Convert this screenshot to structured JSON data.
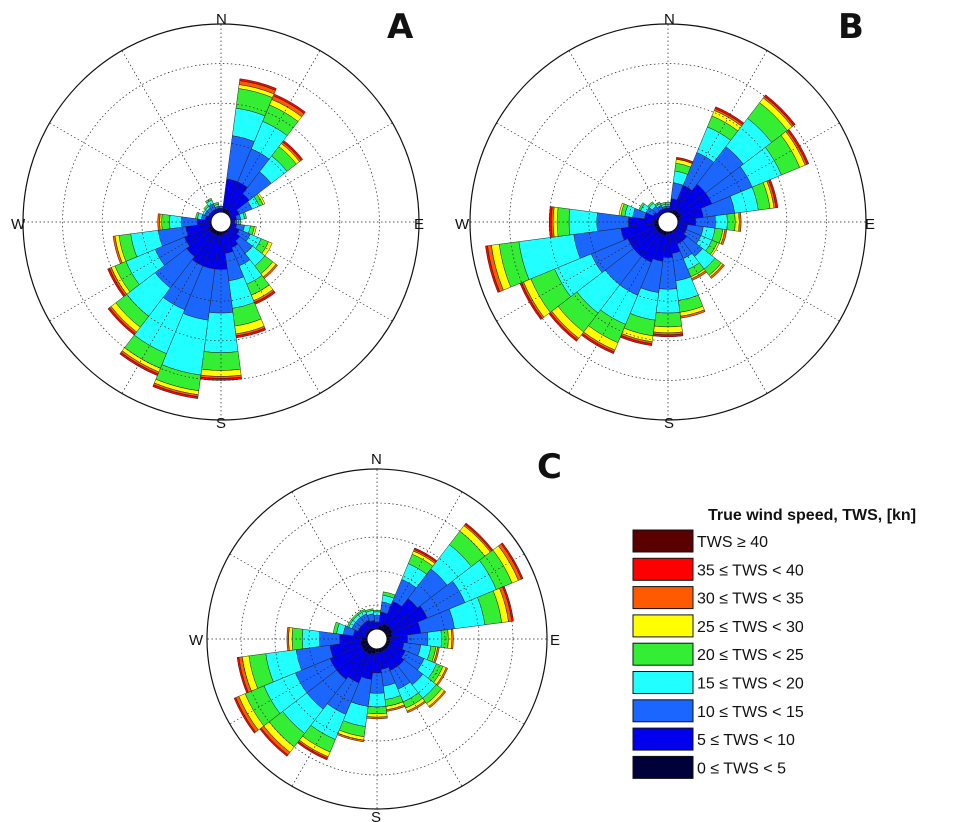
{
  "chart_data": [
    {
      "type": "wind rose",
      "panel": "A",
      "directions": [
        "N",
        "E",
        "S",
        "W"
      ],
      "sector_width_deg": 15,
      "rmax": 1.0,
      "sectors": [
        {
          "dir": 0,
          "r": [
            0.05,
            0.07,
            0.08,
            0.08,
            0.08,
            0.08,
            0.08,
            0.08,
            0.08
          ]
        },
        {
          "dir": 15,
          "r": [
            0.07,
            0.22,
            0.44,
            0.58,
            0.68,
            0.7,
            0.72,
            0.73,
            0.73
          ]
        },
        {
          "dir": 30,
          "r": [
            0.07,
            0.22,
            0.4,
            0.55,
            0.64,
            0.67,
            0.69,
            0.7,
            0.7
          ]
        },
        {
          "dir": 45,
          "r": [
            0.06,
            0.18,
            0.32,
            0.42,
            0.48,
            0.5,
            0.51,
            0.52,
            0.52
          ]
        },
        {
          "dir": 60,
          "r": [
            0.05,
            0.1,
            0.17,
            0.21,
            0.23,
            0.24,
            0.24,
            0.24,
            0.24
          ]
        },
        {
          "dir": 75,
          "r": [
            0.05,
            0.08,
            0.1,
            0.12,
            0.13,
            0.13,
            0.13,
            0.13,
            0.13
          ]
        },
        {
          "dir": 90,
          "r": [
            0.05,
            0.07,
            0.08,
            0.09,
            0.1,
            0.1,
            0.1,
            0.1,
            0.1
          ]
        },
        {
          "dir": 105,
          "r": [
            0.05,
            0.08,
            0.12,
            0.15,
            0.17,
            0.18,
            0.18,
            0.18,
            0.18
          ]
        },
        {
          "dir": 120,
          "r": [
            0.05,
            0.1,
            0.16,
            0.22,
            0.26,
            0.28,
            0.28,
            0.28,
            0.28
          ]
        },
        {
          "dir": 135,
          "r": [
            0.05,
            0.12,
            0.2,
            0.28,
            0.33,
            0.35,
            0.36,
            0.36,
            0.36
          ]
        },
        {
          "dir": 150,
          "r": [
            0.06,
            0.14,
            0.24,
            0.34,
            0.4,
            0.43,
            0.44,
            0.45,
            0.45
          ]
        },
        {
          "dir": 165,
          "r": [
            0.06,
            0.16,
            0.3,
            0.44,
            0.53,
            0.57,
            0.58,
            0.59,
            0.59
          ]
        },
        {
          "dir": 180,
          "r": [
            0.07,
            0.24,
            0.46,
            0.66,
            0.75,
            0.78,
            0.79,
            0.8,
            0.8
          ]
        },
        {
          "dir": 195,
          "r": [
            0.07,
            0.24,
            0.5,
            0.78,
            0.86,
            0.88,
            0.89,
            0.9,
            0.9
          ]
        },
        {
          "dir": 210,
          "r": [
            0.07,
            0.24,
            0.48,
            0.72,
            0.8,
            0.82,
            0.83,
            0.84,
            0.84
          ]
        },
        {
          "dir": 225,
          "r": [
            0.07,
            0.22,
            0.42,
            0.6,
            0.67,
            0.7,
            0.71,
            0.72,
            0.72
          ]
        },
        {
          "dir": 240,
          "r": [
            0.07,
            0.2,
            0.36,
            0.52,
            0.58,
            0.6,
            0.61,
            0.62,
            0.62
          ]
        },
        {
          "dir": 255,
          "r": [
            0.06,
            0.18,
            0.32,
            0.46,
            0.52,
            0.54,
            0.55,
            0.55,
            0.55
          ]
        },
        {
          "dir": 270,
          "r": [
            0.06,
            0.12,
            0.2,
            0.26,
            0.3,
            0.31,
            0.32,
            0.32,
            0.32
          ]
        },
        {
          "dir": 285,
          "r": [
            0.05,
            0.08,
            0.1,
            0.12,
            0.13,
            0.13,
            0.13,
            0.13,
            0.13
          ]
        },
        {
          "dir": 300,
          "r": [
            0.05,
            0.07,
            0.09,
            0.1,
            0.1,
            0.1,
            0.1,
            0.1,
            0.1
          ]
        },
        {
          "dir": 315,
          "r": [
            0.05,
            0.07,
            0.09,
            0.1,
            0.11,
            0.11,
            0.11,
            0.11,
            0.11
          ]
        },
        {
          "dir": 330,
          "r": [
            0.05,
            0.07,
            0.1,
            0.12,
            0.13,
            0.13,
            0.13,
            0.13,
            0.13
          ]
        },
        {
          "dir": 345,
          "r": [
            0.05,
            0.07,
            0.08,
            0.09,
            0.1,
            0.1,
            0.1,
            0.1,
            0.1
          ]
        }
      ]
    },
    {
      "type": "wind rose",
      "panel": "B",
      "directions": [
        "N",
        "E",
        "S",
        "W"
      ],
      "sector_width_deg": 15,
      "rmax": 1.0,
      "sectors": [
        {
          "dir": 0,
          "r": [
            0.05,
            0.07,
            0.08,
            0.09,
            0.1,
            0.1,
            0.1,
            0.1,
            0.1
          ]
        },
        {
          "dir": 15,
          "r": [
            0.06,
            0.12,
            0.2,
            0.26,
            0.3,
            0.32,
            0.32,
            0.33,
            0.33
          ]
        },
        {
          "dir": 30,
          "r": [
            0.07,
            0.2,
            0.38,
            0.52,
            0.58,
            0.61,
            0.62,
            0.63,
            0.63
          ]
        },
        {
          "dir": 45,
          "r": [
            0.07,
            0.24,
            0.48,
            0.66,
            0.76,
            0.79,
            0.8,
            0.81,
            0.81
          ]
        },
        {
          "dir": 60,
          "r": [
            0.07,
            0.24,
            0.46,
            0.62,
            0.72,
            0.75,
            0.76,
            0.77,
            0.77
          ]
        },
        {
          "dir": 75,
          "r": [
            0.06,
            0.18,
            0.34,
            0.46,
            0.52,
            0.54,
            0.55,
            0.56,
            0.56
          ]
        },
        {
          "dir": 90,
          "r": [
            0.05,
            0.14,
            0.24,
            0.3,
            0.34,
            0.36,
            0.37,
            0.37,
            0.37
          ]
        },
        {
          "dir": 105,
          "r": [
            0.05,
            0.1,
            0.18,
            0.24,
            0.28,
            0.29,
            0.3,
            0.3,
            0.3
          ]
        },
        {
          "dir": 120,
          "r": [
            0.05,
            0.1,
            0.18,
            0.24,
            0.27,
            0.28,
            0.28,
            0.28,
            0.28
          ]
        },
        {
          "dir": 135,
          "r": [
            0.05,
            0.12,
            0.22,
            0.3,
            0.34,
            0.35,
            0.36,
            0.36,
            0.36
          ]
        },
        {
          "dir": 150,
          "r": [
            0.05,
            0.12,
            0.2,
            0.26,
            0.3,
            0.31,
            0.32,
            0.32,
            0.32
          ]
        },
        {
          "dir": 165,
          "r": [
            0.06,
            0.16,
            0.3,
            0.4,
            0.46,
            0.48,
            0.49,
            0.49,
            0.49
          ]
        },
        {
          "dir": 180,
          "r": [
            0.06,
            0.18,
            0.34,
            0.46,
            0.53,
            0.56,
            0.57,
            0.58,
            0.58
          ]
        },
        {
          "dir": 195,
          "r": [
            0.07,
            0.2,
            0.36,
            0.5,
            0.58,
            0.61,
            0.62,
            0.63,
            0.63
          ]
        },
        {
          "dir": 210,
          "r": [
            0.07,
            0.22,
            0.4,
            0.56,
            0.66,
            0.7,
            0.71,
            0.72,
            0.72
          ]
        },
        {
          "dir": 225,
          "r": [
            0.07,
            0.22,
            0.4,
            0.58,
            0.7,
            0.74,
            0.75,
            0.76,
            0.76
          ]
        },
        {
          "dir": 240,
          "r": [
            0.07,
            0.22,
            0.42,
            0.62,
            0.75,
            0.79,
            0.8,
            0.81,
            0.81
          ]
        },
        {
          "dir": 255,
          "r": [
            0.07,
            0.24,
            0.48,
            0.76,
            0.86,
            0.9,
            0.92,
            0.93,
            0.93
          ]
        },
        {
          "dir": 270,
          "r": [
            0.07,
            0.2,
            0.36,
            0.5,
            0.56,
            0.58,
            0.59,
            0.6,
            0.6
          ]
        },
        {
          "dir": 285,
          "r": [
            0.06,
            0.12,
            0.18,
            0.22,
            0.24,
            0.25,
            0.25,
            0.25,
            0.25
          ]
        },
        {
          "dir": 300,
          "r": [
            0.05,
            0.08,
            0.12,
            0.15,
            0.16,
            0.16,
            0.16,
            0.16,
            0.16
          ]
        },
        {
          "dir": 315,
          "r": [
            0.05,
            0.07,
            0.1,
            0.12,
            0.13,
            0.13,
            0.13,
            0.13,
            0.13
          ]
        },
        {
          "dir": 330,
          "r": [
            0.05,
            0.07,
            0.09,
            0.1,
            0.11,
            0.11,
            0.11,
            0.11,
            0.11
          ]
        },
        {
          "dir": 345,
          "r": [
            0.05,
            0.07,
            0.08,
            0.09,
            0.1,
            0.1,
            0.1,
            0.1,
            0.1
          ]
        }
      ]
    },
    {
      "type": "wind rose",
      "panel": "C",
      "directions": [
        "N",
        "E",
        "S",
        "W"
      ],
      "sector_width_deg": 15,
      "rmax": 1.0,
      "sectors": [
        {
          "dir": 0,
          "r": [
            0.06,
            0.1,
            0.14,
            0.16,
            0.17,
            0.17,
            0.17,
            0.17,
            0.17
          ]
        },
        {
          "dir": 15,
          "r": [
            0.08,
            0.16,
            0.22,
            0.26,
            0.28,
            0.28,
            0.28,
            0.28,
            0.28
          ]
        },
        {
          "dir": 30,
          "r": [
            0.1,
            0.24,
            0.38,
            0.48,
            0.54,
            0.56,
            0.57,
            0.58,
            0.58
          ]
        },
        {
          "dir": 45,
          "r": [
            0.1,
            0.3,
            0.52,
            0.7,
            0.8,
            0.84,
            0.85,
            0.86,
            0.86
          ]
        },
        {
          "dir": 60,
          "r": [
            0.1,
            0.32,
            0.56,
            0.76,
            0.86,
            0.9,
            0.92,
            0.93,
            0.93
          ]
        },
        {
          "dir": 75,
          "r": [
            0.09,
            0.26,
            0.46,
            0.64,
            0.74,
            0.78,
            0.8,
            0.81,
            0.81
          ]
        },
        {
          "dir": 90,
          "r": [
            0.08,
            0.18,
            0.3,
            0.38,
            0.42,
            0.44,
            0.45,
            0.45,
            0.45
          ]
        },
        {
          "dir": 105,
          "r": [
            0.08,
            0.16,
            0.26,
            0.32,
            0.35,
            0.36,
            0.37,
            0.37,
            0.37
          ]
        },
        {
          "dir": 120,
          "r": [
            0.08,
            0.18,
            0.3,
            0.38,
            0.42,
            0.44,
            0.45,
            0.45,
            0.45
          ]
        },
        {
          "dir": 135,
          "r": [
            0.08,
            0.2,
            0.34,
            0.44,
            0.48,
            0.5,
            0.51,
            0.51,
            0.51
          ]
        },
        {
          "dir": 150,
          "r": [
            0.08,
            0.2,
            0.32,
            0.4,
            0.44,
            0.46,
            0.47,
            0.47,
            0.47
          ]
        },
        {
          "dir": 165,
          "r": [
            0.08,
            0.18,
            0.28,
            0.36,
            0.4,
            0.42,
            0.43,
            0.43,
            0.43
          ]
        },
        {
          "dir": 180,
          "r": [
            0.08,
            0.2,
            0.32,
            0.4,
            0.44,
            0.46,
            0.47,
            0.47,
            0.47
          ]
        },
        {
          "dir": 195,
          "r": [
            0.09,
            0.24,
            0.4,
            0.52,
            0.58,
            0.6,
            0.61,
            0.61,
            0.61
          ]
        },
        {
          "dir": 210,
          "r": [
            0.1,
            0.28,
            0.48,
            0.64,
            0.72,
            0.75,
            0.76,
            0.77,
            0.77
          ]
        },
        {
          "dir": 225,
          "r": [
            0.1,
            0.3,
            0.52,
            0.7,
            0.8,
            0.84,
            0.86,
            0.87,
            0.87
          ]
        },
        {
          "dir": 240,
          "r": [
            0.1,
            0.3,
            0.52,
            0.72,
            0.84,
            0.88,
            0.9,
            0.91,
            0.91
          ]
        },
        {
          "dir": 255,
          "r": [
            0.1,
            0.28,
            0.48,
            0.66,
            0.76,
            0.8,
            0.82,
            0.83,
            0.83
          ]
        },
        {
          "dir": 270,
          "r": [
            0.09,
            0.22,
            0.34,
            0.44,
            0.5,
            0.52,
            0.53,
            0.53,
            0.53
          ]
        },
        {
          "dir": 285,
          "r": [
            0.07,
            0.14,
            0.2,
            0.24,
            0.26,
            0.26,
            0.26,
            0.26,
            0.26
          ]
        },
        {
          "dir": 300,
          "r": [
            0.07,
            0.12,
            0.16,
            0.18,
            0.19,
            0.19,
            0.19,
            0.19,
            0.19
          ]
        },
        {
          "dir": 315,
          "r": [
            0.07,
            0.12,
            0.16,
            0.18,
            0.19,
            0.19,
            0.19,
            0.19,
            0.19
          ]
        },
        {
          "dir": 330,
          "r": [
            0.07,
            0.12,
            0.16,
            0.18,
            0.19,
            0.19,
            0.19,
            0.19,
            0.19
          ]
        },
        {
          "dir": 345,
          "r": [
            0.06,
            0.11,
            0.15,
            0.17,
            0.18,
            0.18,
            0.18,
            0.18,
            0.18
          ]
        }
      ]
    }
  ],
  "legend": {
    "title": "True wind speed, TWS, [kn]",
    "placement": "bottom-right",
    "entries": [
      {
        "label": "TWS ≥ 40",
        "color": "#5a0000"
      },
      {
        "label": "35 ≤ TWS < 40",
        "color": "#ff0000"
      },
      {
        "label": "30 ≤ TWS < 35",
        "color": "#ff5a00"
      },
      {
        "label": "25 ≤ TWS < 30",
        "color": "#ffff00"
      },
      {
        "label": "20 ≤ TWS < 25",
        "color": "#33ee33"
      },
      {
        "label": "15 ≤ TWS < 20",
        "color": "#22ffff"
      },
      {
        "label": "10 ≤ TWS < 15",
        "color": "#1a66ff"
      },
      {
        "label": "5 ≤ TWS < 10",
        "color": "#0000ee"
      },
      {
        "label": "0 ≤ TWS < 5",
        "color": "#00003a"
      }
    ]
  },
  "bin_colors_inner_to_outer": [
    "#00003a",
    "#0000ee",
    "#1a66ff",
    "#22ffff",
    "#33ee33",
    "#ffff00",
    "#ff5a00",
    "#ff0000",
    "#5a0000"
  ]
}
